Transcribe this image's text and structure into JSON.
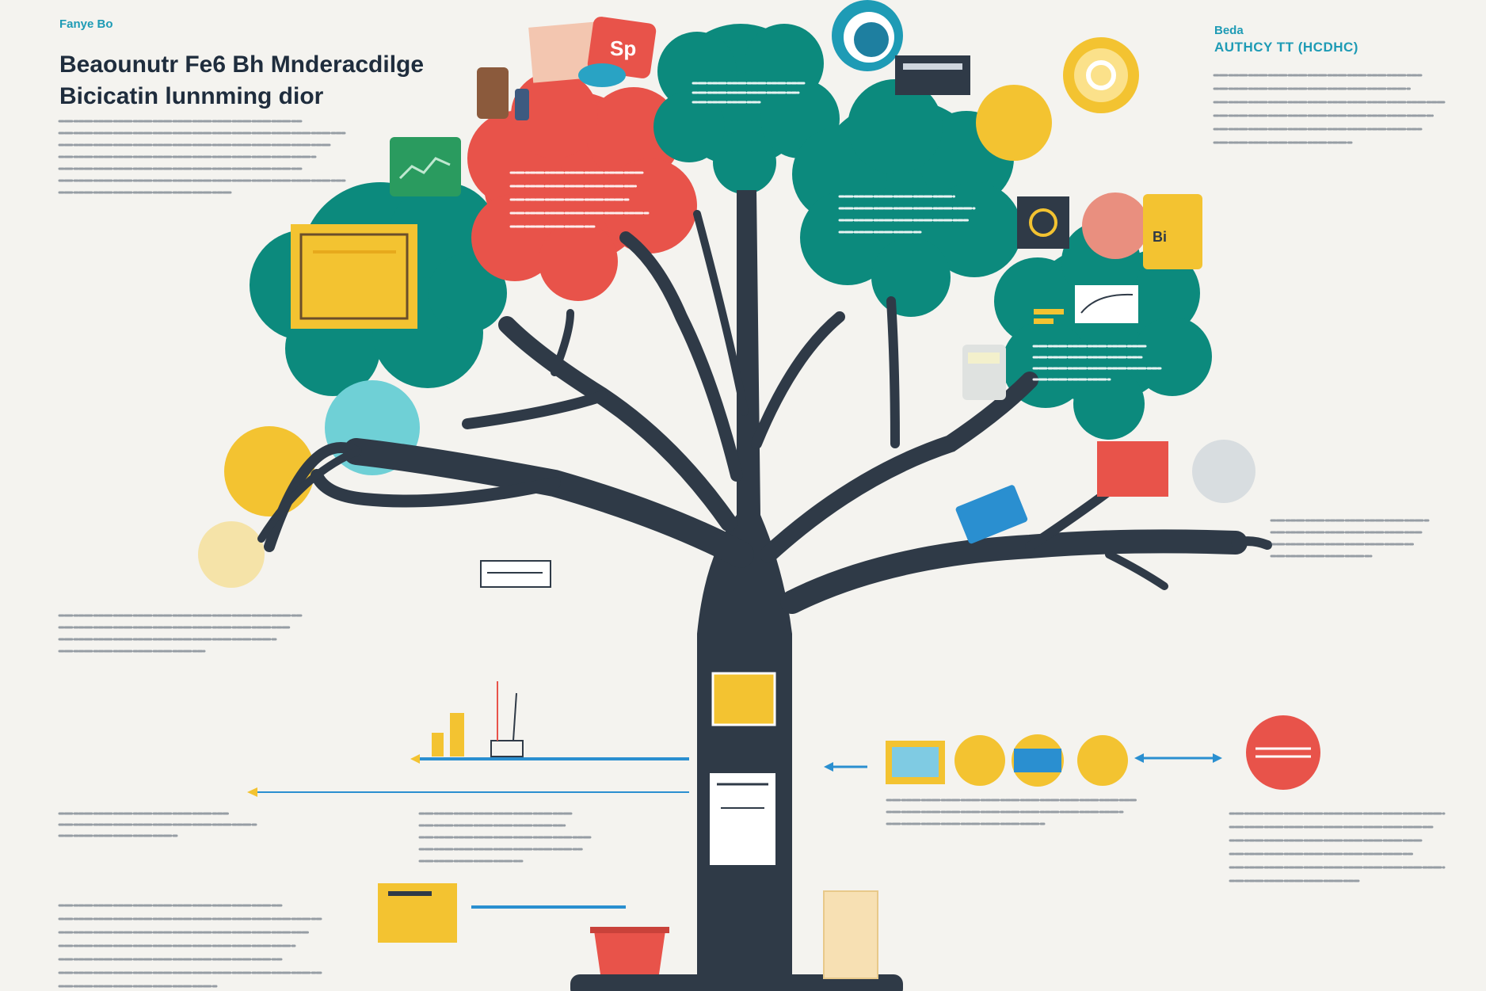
{
  "header": {
    "kicker": "Fanye Bo",
    "title_line1": "Beaounutr Fe6 Bh Mnderacdilge",
    "title_line2": "Bicicatin lunnming dior"
  },
  "right_header": {
    "kicker": "Beda",
    "subtitle": "AUTHCY TT (HCDHC)"
  },
  "callouts": {
    "blob_red": "Sp",
    "card_right": "Bi"
  },
  "colors": {
    "trunk": "#2f3a47",
    "teal": "#0c8a7d",
    "red": "#e8534a",
    "yellow": "#f3c331",
    "cyan": "#6fd0d6",
    "blue_line": "#2a8fd0",
    "background": "#f4f3ef"
  },
  "icons": [
    "document-icon",
    "wallet-icon",
    "cup-icon",
    "coin-icon",
    "chart-card-icon",
    "certificate-icon",
    "graph-card-icon",
    "laptop-icon",
    "money-icon",
    "calculator-icon",
    "bucket-icon",
    "factory-icon",
    "notes-icon"
  ]
}
